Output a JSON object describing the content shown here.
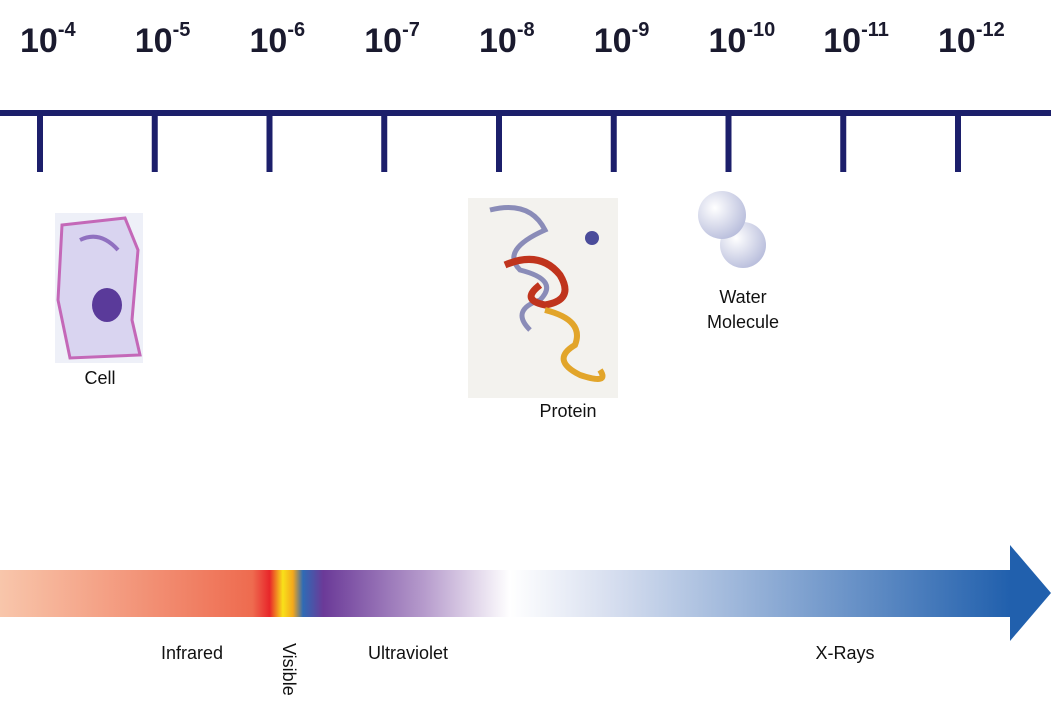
{
  "scale": [
    {
      "base": "10",
      "exponent": "-4"
    },
    {
      "base": "10",
      "exponent": "-5"
    },
    {
      "base": "10",
      "exponent": "-6"
    },
    {
      "base": "10",
      "exponent": "-7"
    },
    {
      "base": "10",
      "exponent": "-8"
    },
    {
      "base": "10",
      "exponent": "-9"
    },
    {
      "base": "10",
      "exponent": "-10"
    },
    {
      "base": "10",
      "exponent": "-11"
    },
    {
      "base": "10",
      "exponent": "-12"
    }
  ],
  "objects": {
    "cell": {
      "label": "Cell"
    },
    "protein": {
      "label": "Protein"
    },
    "water": {
      "label_lines": [
        "Water",
        "Molecule"
      ]
    }
  },
  "spectrum": {
    "infrared": "Infrared",
    "visible": "Visible",
    "ultraviolet": "Ultraviolet",
    "xrays": "X-Rays"
  }
}
